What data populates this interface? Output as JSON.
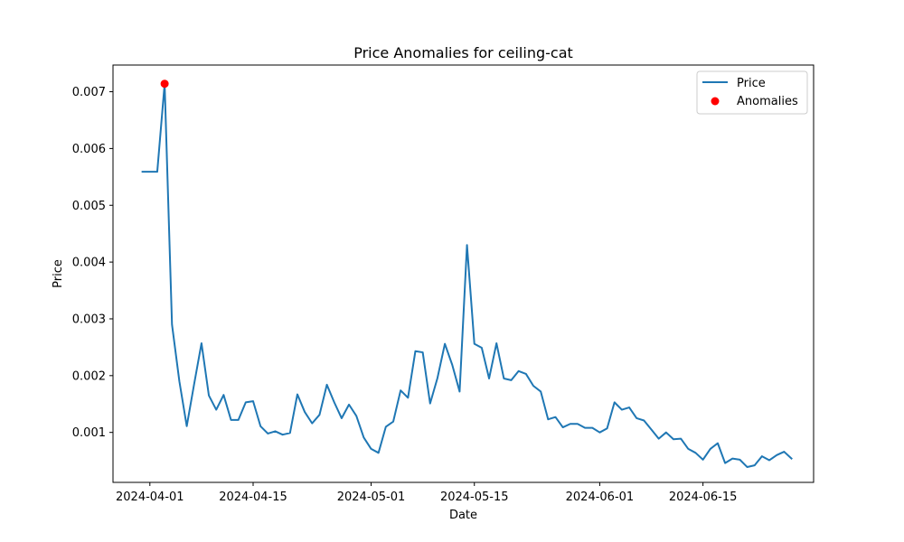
{
  "chart_data": {
    "type": "line",
    "title": "Price Anomalies for ceiling-cat",
    "xlabel": "Date",
    "ylabel": "Price",
    "x_ticks": [
      "2024-04-01",
      "2024-04-15",
      "2024-05-01",
      "2024-05-15",
      "2024-06-01",
      "2024-06-15"
    ],
    "y_ticks": [
      "0.001",
      "0.002",
      "0.003",
      "0.004",
      "0.005",
      "0.006",
      "0.007"
    ],
    "ylim": [
      0.00012,
      0.00747
    ],
    "xlim": [
      "2024-03-27",
      "2024-06-30"
    ],
    "grid": false,
    "legend": {
      "location": "top-right",
      "entries": [
        "Price",
        "Anomalies"
      ]
    },
    "colors": {
      "line": "#1f77b4",
      "anomaly": "#ff0000"
    },
    "series": [
      {
        "name": "Price",
        "kind": "line",
        "points": [
          [
            "2024-03-31",
            0.00559
          ],
          [
            "2024-04-01",
            0.00559
          ],
          [
            "2024-04-02",
            0.00559
          ],
          [
            "2024-04-03",
            0.00714
          ],
          [
            "2024-04-04",
            0.0029
          ],
          [
            "2024-04-05",
            0.0019
          ],
          [
            "2024-04-06",
            0.00111
          ],
          [
            "2024-04-07",
            0.00185
          ],
          [
            "2024-04-08",
            0.00257
          ],
          [
            "2024-04-09",
            0.00165
          ],
          [
            "2024-04-10",
            0.0014
          ],
          [
            "2024-04-11",
            0.00166
          ],
          [
            "2024-04-12",
            0.00122
          ],
          [
            "2024-04-13",
            0.00122
          ],
          [
            "2024-04-14",
            0.00153
          ],
          [
            "2024-04-15",
            0.00155
          ],
          [
            "2024-04-16",
            0.00111
          ],
          [
            "2024-04-17",
            0.00098
          ],
          [
            "2024-04-18",
            0.00102
          ],
          [
            "2024-04-19",
            0.00096
          ],
          [
            "2024-04-20",
            0.00099
          ],
          [
            "2024-04-21",
            0.00167
          ],
          [
            "2024-04-22",
            0.00136
          ],
          [
            "2024-04-23",
            0.00116
          ],
          [
            "2024-04-24",
            0.00131
          ],
          [
            "2024-04-25",
            0.00184
          ],
          [
            "2024-04-26",
            0.00153
          ],
          [
            "2024-04-27",
            0.00125
          ],
          [
            "2024-04-28",
            0.00149
          ],
          [
            "2024-04-29",
            0.00129
          ],
          [
            "2024-04-30",
            0.00091
          ],
          [
            "2024-05-01",
            0.00071
          ],
          [
            "2024-05-02",
            0.00064
          ],
          [
            "2024-05-03",
            0.0011
          ],
          [
            "2024-05-04",
            0.00119
          ],
          [
            "2024-05-05",
            0.00174
          ],
          [
            "2024-05-06",
            0.00161
          ],
          [
            "2024-05-07",
            0.00243
          ],
          [
            "2024-05-08",
            0.00241
          ],
          [
            "2024-05-09",
            0.00151
          ],
          [
            "2024-05-10",
            0.00196
          ],
          [
            "2024-05-11",
            0.00256
          ],
          [
            "2024-05-12",
            0.00219
          ],
          [
            "2024-05-13",
            0.00172
          ],
          [
            "2024-05-14",
            0.0043
          ],
          [
            "2024-05-15",
            0.00256
          ],
          [
            "2024-05-16",
            0.00249
          ],
          [
            "2024-05-17",
            0.00195
          ],
          [
            "2024-05-18",
            0.00257
          ],
          [
            "2024-05-19",
            0.00195
          ],
          [
            "2024-05-20",
            0.00192
          ],
          [
            "2024-05-21",
            0.00208
          ],
          [
            "2024-05-22",
            0.00203
          ],
          [
            "2024-05-23",
            0.00182
          ],
          [
            "2024-05-24",
            0.00172
          ],
          [
            "2024-05-25",
            0.00123
          ],
          [
            "2024-05-26",
            0.00127
          ],
          [
            "2024-05-27",
            0.00109
          ],
          [
            "2024-05-28",
            0.00115
          ],
          [
            "2024-05-29",
            0.00115
          ],
          [
            "2024-05-30",
            0.00108
          ],
          [
            "2024-05-31",
            0.00108
          ],
          [
            "2024-06-01",
            0.001
          ],
          [
            "2024-06-02",
            0.00107
          ],
          [
            "2024-06-03",
            0.00153
          ],
          [
            "2024-06-04",
            0.0014
          ],
          [
            "2024-06-05",
            0.00144
          ],
          [
            "2024-06-06",
            0.00125
          ],
          [
            "2024-06-07",
            0.00121
          ],
          [
            "2024-06-08",
            0.00105
          ],
          [
            "2024-06-09",
            0.00089
          ],
          [
            "2024-06-10",
            0.001
          ],
          [
            "2024-06-11",
            0.00088
          ],
          [
            "2024-06-12",
            0.00089
          ],
          [
            "2024-06-13",
            0.00071
          ],
          [
            "2024-06-14",
            0.00064
          ],
          [
            "2024-06-15",
            0.00052
          ],
          [
            "2024-06-16",
            0.00071
          ],
          [
            "2024-06-17",
            0.00081
          ],
          [
            "2024-06-18",
            0.00046
          ],
          [
            "2024-06-19",
            0.00054
          ],
          [
            "2024-06-20",
            0.00052
          ],
          [
            "2024-06-21",
            0.00039
          ],
          [
            "2024-06-22",
            0.00042
          ],
          [
            "2024-06-23",
            0.00058
          ],
          [
            "2024-06-24",
            0.00051
          ],
          [
            "2024-06-25",
            0.0006
          ],
          [
            "2024-06-26",
            0.00066
          ],
          [
            "2024-06-27",
            0.00054
          ]
        ]
      },
      {
        "name": "Anomalies",
        "kind": "scatter",
        "points": [
          [
            "2024-04-03",
            0.00714
          ]
        ]
      }
    ]
  }
}
